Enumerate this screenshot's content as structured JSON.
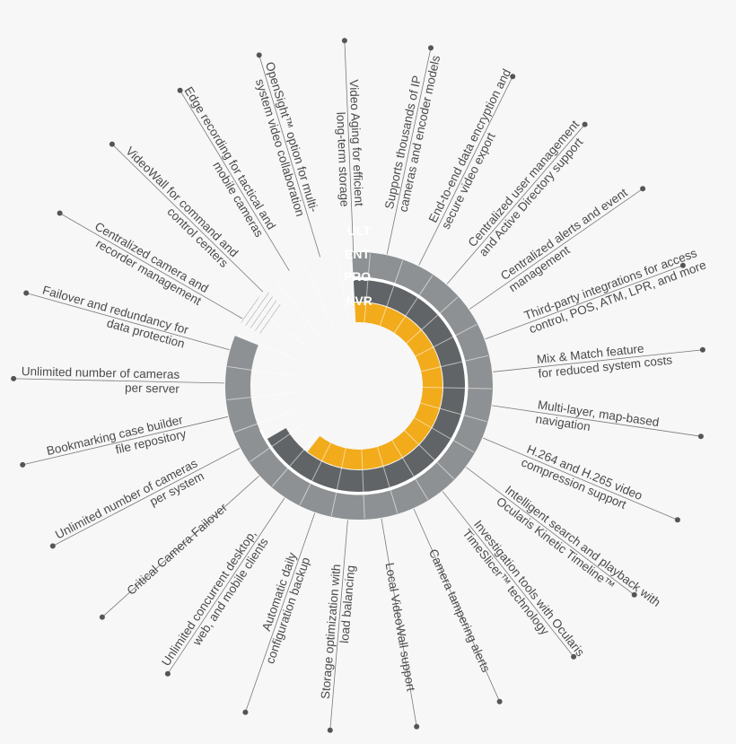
{
  "tiers": [
    {
      "code": "ULT",
      "color": "#8a7a52"
    },
    {
      "code": "ENT",
      "color": "#8e9193"
    },
    {
      "code": "PRO",
      "color": "#616466"
    },
    {
      "code": "NVR",
      "color": "#f2ab1a"
    }
  ],
  "features": [
    {
      "lines": [
        "Supports thousands of IP",
        "cameras and encoder models"
      ]
    },
    {
      "lines": [
        "End-to-end data encryption and",
        "secure video export"
      ]
    },
    {
      "lines": [
        "Centralized user management",
        "and Active Directory support"
      ]
    },
    {
      "lines": [
        "Centralized alerts and event",
        "management"
      ]
    },
    {
      "lines": [
        "Third-party integrations for access",
        "control, POS, ATM, LPR, and more"
      ]
    },
    {
      "lines": [
        "Mix & Match feature",
        "for reduced system costs"
      ]
    },
    {
      "lines": [
        "Multi-layer, map-based",
        "navigation"
      ]
    },
    {
      "lines": [
        "H.264 and H.265 video",
        "compression support"
      ]
    },
    {
      "lines": [
        "Intelligent search and playback with",
        "Ocularis Kinetic Timeline™"
      ]
    },
    {
      "lines": [
        "Investigation tools with Ocularis",
        "TimeSlicer™ technology"
      ]
    },
    {
      "lines": [
        "Camera tampering alerts"
      ]
    },
    {
      "lines": [
        "Local VideoWall support"
      ]
    },
    {
      "lines": [
        "Storage optimization with",
        "load balancing"
      ]
    },
    {
      "lines": [
        "Automatic daily",
        "configuration backup"
      ]
    },
    {
      "lines": [
        "Unlimited concurrent desktop,",
        "web, and mobile clients"
      ]
    },
    {
      "lines": [
        "Critical Camera Failover"
      ]
    },
    {
      "lines": [
        "Unlimited number of cameras",
        "per system"
      ]
    },
    {
      "lines": [
        "Bookmarking case builder",
        "file repository"
      ]
    },
    {
      "lines": [
        "Unlimited number of cameras",
        "per server"
      ]
    },
    {
      "lines": [
        "Failover and redundancy for",
        "data protection"
      ]
    },
    {
      "lines": [
        "Centralized camera and",
        "recorder management"
      ]
    },
    {
      "lines": [
        "VideoWall for command and",
        "control centers"
      ]
    },
    {
      "lines": [
        "Edge recording for tactical and",
        "mobile cameras"
      ]
    },
    {
      "lines": [
        "OpenSight™ option for multi-",
        "system video collaboration"
      ]
    },
    {
      "lines": [
        "Video Aging for efficient",
        "long-term storage"
      ]
    }
  ]
}
